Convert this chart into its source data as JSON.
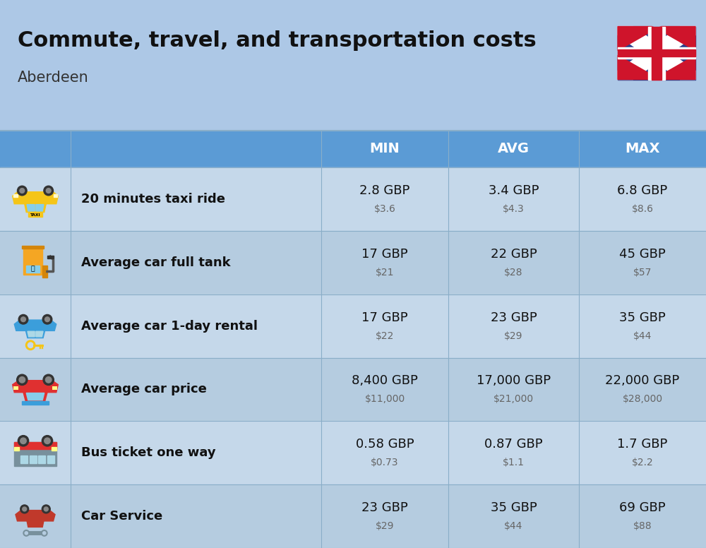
{
  "title": "Commute, travel, and transportation costs",
  "subtitle": "Aberdeen",
  "bg_color": "#adc8e6",
  "header_bg": "#5b9bd5",
  "header_text_color": "#ffffff",
  "row_colors": [
    "#c5d8ea",
    "#b5cce0"
  ],
  "col_headers": [
    "MIN",
    "AVG",
    "MAX"
  ],
  "rows": [
    {
      "label": "20 minutes taxi ride",
      "min_gbp": "2.8 GBP",
      "min_usd": "$3.6",
      "avg_gbp": "3.4 GBP",
      "avg_usd": "$4.3",
      "max_gbp": "6.8 GBP",
      "max_usd": "$8.6"
    },
    {
      "label": "Average car full tank",
      "min_gbp": "17 GBP",
      "min_usd": "$21",
      "avg_gbp": "22 GBP",
      "avg_usd": "$28",
      "max_gbp": "45 GBP",
      "max_usd": "$57"
    },
    {
      "label": "Average car 1-day rental",
      "min_gbp": "17 GBP",
      "min_usd": "$22",
      "avg_gbp": "23 GBP",
      "avg_usd": "$29",
      "max_gbp": "35 GBP",
      "max_usd": "$44"
    },
    {
      "label": "Average car price",
      "min_gbp": "8,400 GBP",
      "min_usd": "$11,000",
      "avg_gbp": "17,000 GBP",
      "avg_usd": "$21,000",
      "max_gbp": "22,000 GBP",
      "max_usd": "$28,000"
    },
    {
      "label": "Bus ticket one way",
      "min_gbp": "0.58 GBP",
      "min_usd": "$0.73",
      "avg_gbp": "0.87 GBP",
      "avg_usd": "$1.1",
      "max_gbp": "1.7 GBP",
      "max_usd": "$2.2"
    },
    {
      "label": "Car Service",
      "min_gbp": "23 GBP",
      "min_usd": "$29",
      "avg_gbp": "35 GBP",
      "avg_usd": "$44",
      "max_gbp": "69 GBP",
      "max_usd": "$88"
    }
  ],
  "title_fontsize": 22,
  "subtitle_fontsize": 15,
  "header_fontsize": 14,
  "label_fontsize": 13,
  "value_fontsize": 13,
  "usd_fontsize": 10,
  "divider_color": "#8aaec8"
}
